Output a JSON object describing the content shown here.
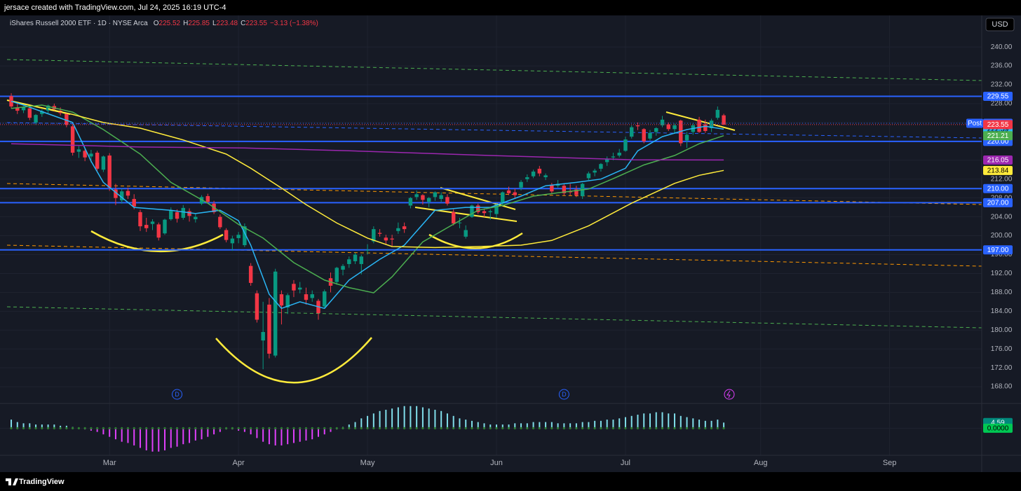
{
  "attribution": "jersace created with TradingView.com, Jul 24, 2025 16:19 UTC-4",
  "footer_logo": "TradingView",
  "chart_data": {
    "type": "candlestick",
    "title": "iShares Russell 2000 ETF · 1D · NYSE Arca",
    "ohlc_keys": [
      "O",
      "H",
      "L",
      "C"
    ],
    "change_label": "−3.13 (−1.38%)",
    "currency": "USD",
    "up_color": "#089981",
    "down_color": "#f23645",
    "candles": [
      [
        229.6,
        230.2,
        227.0,
        227.4
      ],
      [
        227.2,
        228.0,
        225.8,
        226.5
      ],
      [
        226.6,
        227.5,
        226.0,
        227.2
      ],
      [
        227.0,
        227.4,
        224.5,
        225.0
      ],
      [
        224.0,
        225.8,
        223.5,
        225.6
      ],
      [
        225.8,
        226.8,
        225.2,
        226.4
      ],
      [
        226.5,
        227.8,
        226.0,
        227.6
      ],
      [
        227.5,
        228.0,
        226.3,
        226.8
      ],
      [
        226.5,
        227.2,
        225.5,
        226.0
      ],
      [
        225.8,
        226.0,
        223.0,
        223.5
      ],
      [
        223.2,
        223.6,
        217.0,
        217.6
      ],
      [
        217.8,
        219.0,
        216.5,
        218.3
      ],
      [
        218.0,
        218.5,
        215.8,
        216.6
      ],
      [
        216.8,
        218.2,
        215.5,
        217.4
      ],
      [
        217.6,
        218.0,
        213.8,
        214.2
      ],
      [
        214.0,
        217.0,
        213.5,
        216.8
      ],
      [
        217.0,
        217.5,
        209.5,
        210.2
      ],
      [
        209.8,
        211.0,
        206.5,
        208.0
      ],
      [
        207.5,
        210.0,
        206.8,
        209.4
      ],
      [
        209.5,
        210.2,
        207.8,
        208.5
      ],
      [
        207.8,
        208.8,
        205.6,
        206.2
      ],
      [
        205.0,
        205.5,
        201.0,
        202.0
      ],
      [
        202.3,
        203.8,
        200.8,
        201.6
      ],
      [
        202.5,
        203.5,
        201.2,
        203.0
      ],
      [
        202.4,
        202.8,
        199.0,
        199.6
      ],
      [
        200.5,
        203.6,
        200.2,
        203.4
      ],
      [
        203.5,
        206.0,
        203.2,
        205.4
      ],
      [
        205.0,
        205.6,
        202.8,
        203.6
      ],
      [
        203.8,
        206.5,
        203.4,
        205.9
      ],
      [
        205.2,
        205.8,
        203.0,
        204.2
      ],
      [
        203.5,
        204.6,
        202.8,
        204.0
      ],
      [
        206.8,
        208.6,
        206.5,
        208.2
      ],
      [
        208.4,
        208.9,
        206.8,
        207.2
      ],
      [
        206.8,
        207.4,
        204.6,
        205.0
      ],
      [
        204.0,
        204.5,
        201.4,
        201.8
      ],
      [
        201.2,
        201.6,
        198.6,
        199.1
      ],
      [
        198.4,
        200.0,
        196.8,
        199.4
      ],
      [
        199.5,
        200.8,
        198.4,
        200.2
      ],
      [
        198.0,
        202.6,
        197.6,
        202.0
      ],
      [
        193.6,
        194.2,
        189.4,
        190.0
      ],
      [
        187.8,
        188.4,
        181.6,
        182.2
      ],
      [
        177.8,
        186.0,
        171.7,
        179.6
      ],
      [
        185.4,
        186.8,
        174.0,
        175.0
      ],
      [
        174.6,
        193.0,
        174.2,
        192.4
      ],
      [
        187.6,
        188.4,
        181.2,
        185.2
      ],
      [
        184.8,
        187.8,
        183.4,
        187.4
      ],
      [
        189.8,
        190.6,
        187.0,
        188.4
      ],
      [
        188.6,
        190.2,
        187.8,
        189.0
      ],
      [
        187.6,
        189.0,
        185.4,
        186.4
      ],
      [
        186.8,
        188.4,
        186.0,
        187.6
      ],
      [
        186.2,
        186.6,
        182.2,
        183.6
      ],
      [
        185.0,
        188.6,
        184.8,
        188.2
      ],
      [
        191.0,
        192.2,
        188.0,
        189.4
      ],
      [
        190.2,
        193.4,
        189.6,
        193.2
      ],
      [
        192.8,
        194.0,
        191.6,
        193.6
      ],
      [
        194.0,
        195.6,
        193.2,
        195.0
      ],
      [
        194.6,
        196.4,
        194.0,
        196.0
      ],
      [
        194.0,
        196.0,
        191.8,
        195.6
      ],
      [
        197.0,
        198.2,
        196.0,
        197.0
      ],
      [
        198.8,
        202.0,
        198.4,
        201.4
      ],
      [
        200.6,
        201.4,
        199.8,
        200.4
      ],
      [
        199.6,
        200.2,
        198.2,
        199.0
      ],
      [
        199.4,
        200.2,
        197.8,
        199.2
      ],
      [
        201.0,
        202.8,
        200.4,
        201.6
      ],
      [
        202.0,
        202.8,
        200.6,
        201.4
      ],
      [
        206.4,
        208.2,
        205.8,
        208.0
      ],
      [
        208.2,
        209.6,
        207.6,
        208.8
      ],
      [
        208.6,
        208.8,
        206.6,
        207.6
      ],
      [
        207.2,
        208.2,
        206.0,
        208.0
      ],
      [
        208.2,
        209.4,
        207.4,
        209.2
      ],
      [
        207.8,
        209.2,
        207.2,
        208.6
      ],
      [
        208.2,
        208.8,
        206.4,
        206.8
      ],
      [
        205.0,
        205.6,
        202.2,
        202.6
      ],
      [
        202.8,
        203.8,
        201.6,
        202.8
      ],
      [
        199.8,
        202.2,
        199.4,
        201.2
      ],
      [
        204.0,
        206.6,
        203.8,
        206.4
      ],
      [
        206.4,
        206.8,
        204.6,
        205.0
      ],
      [
        205.2,
        205.8,
        204.0,
        204.8
      ],
      [
        205.0,
        205.6,
        203.4,
        205.2
      ],
      [
        204.6,
        206.8,
        203.8,
        206.6
      ],
      [
        206.8,
        209.4,
        206.4,
        209.2
      ],
      [
        209.6,
        210.4,
        208.6,
        209.0
      ],
      [
        209.2,
        210.0,
        208.0,
        208.6
      ],
      [
        210.2,
        211.8,
        209.6,
        211.4
      ],
      [
        212.0,
        213.0,
        211.4,
        212.4
      ],
      [
        212.6,
        214.0,
        212.2,
        213.6
      ],
      [
        214.2,
        214.8,
        212.6,
        213.2
      ],
      [
        212.4,
        213.2,
        211.8,
        212.8
      ],
      [
        210.8,
        211.2,
        208.8,
        209.4
      ],
      [
        210.6,
        211.8,
        210.2,
        211.0
      ],
      [
        210.6,
        211.0,
        208.6,
        209.0
      ],
      [
        209.4,
        211.0,
        208.6,
        209.2
      ],
      [
        209.8,
        210.6,
        208.2,
        208.6
      ],
      [
        208.4,
        211.2,
        207.8,
        211.0
      ],
      [
        212.2,
        213.6,
        211.8,
        213.2
      ],
      [
        213.4,
        214.2,
        212.6,
        213.8
      ],
      [
        214.2,
        215.4,
        213.6,
        215.2
      ],
      [
        215.6,
        216.8,
        214.8,
        216.2
      ],
      [
        216.6,
        217.6,
        216.0,
        216.8
      ],
      [
        217.0,
        218.4,
        216.6,
        217.6
      ],
      [
        218.0,
        221.0,
        217.8,
        220.4
      ],
      [
        221.0,
        223.4,
        220.6,
        223.0
      ],
      [
        223.4,
        224.0,
        222.4,
        223.2
      ],
      [
        222.6,
        222.8,
        219.6,
        220.0
      ],
      [
        220.6,
        222.4,
        220.2,
        221.8
      ],
      [
        222.0,
        223.0,
        221.2,
        222.8
      ],
      [
        223.4,
        225.4,
        223.0,
        224.6
      ],
      [
        223.6,
        224.0,
        222.2,
        222.6
      ],
      [
        222.6,
        223.8,
        221.6,
        223.4
      ],
      [
        224.4,
        224.6,
        219.0,
        219.6
      ],
      [
        220.2,
        222.0,
        218.6,
        221.4
      ],
      [
        222.0,
        223.8,
        221.4,
        223.4
      ],
      [
        224.6,
        225.2,
        221.8,
        222.0
      ],
      [
        223.6,
        224.6,
        221.8,
        222.2
      ],
      [
        222.8,
        224.8,
        222.0,
        224.4
      ],
      [
        225.0,
        227.4,
        224.6,
        226.68
      ],
      [
        225.52,
        225.85,
        223.48,
        223.55
      ]
    ],
    "xlim": [
      -1.83,
      158
    ],
    "xticks": [
      {
        "value": 16,
        "label": "Mar"
      },
      {
        "value": 37,
        "label": "Apr"
      },
      {
        "value": 58,
        "label": "May"
      },
      {
        "value": 79,
        "label": "Jun"
      },
      {
        "value": 100,
        "label": "Jul"
      },
      {
        "value": 122,
        "label": "Aug"
      },
      {
        "value": 143,
        "label": "Sep"
      }
    ],
    "ylim": [
      164.6,
      246.7
    ],
    "yticks": [
      {
        "value": 168,
        "label": "168.00"
      },
      {
        "value": 172,
        "label": "172.00"
      },
      {
        "value": 176,
        "label": "176.00"
      },
      {
        "value": 180,
        "label": "180.00"
      },
      {
        "value": 184,
        "label": "184.00"
      },
      {
        "value": 188,
        "label": "188.00"
      },
      {
        "value": 192,
        "label": "192.00"
      },
      {
        "value": 196,
        "label": "196.00"
      },
      {
        "value": 200,
        "label": "200.00"
      },
      {
        "value": 204,
        "label": "204.00"
      },
      {
        "value": 208,
        "label": "208.00"
      },
      {
        "value": 212,
        "label": "212.00"
      },
      {
        "value": 216,
        "label": "216.00"
      },
      {
        "value": 220,
        "label": "220.00"
      },
      {
        "value": 224,
        "label": "224.00"
      },
      {
        "value": 228,
        "label": "228.00"
      },
      {
        "value": 232,
        "label": "232.00"
      },
      {
        "value": 236,
        "label": "236.00"
      },
      {
        "value": 240,
        "label": "240.00"
      }
    ],
    "grid": true,
    "series": [
      {
        "color": "#29b6f6",
        "x": [
          0,
          2,
          10,
          13,
          15,
          20,
          26,
          30,
          34,
          37,
          39,
          42,
          44,
          47,
          51,
          55,
          60,
          64,
          69,
          74,
          78,
          83,
          87,
          92,
          96,
          100,
          102,
          106,
          110,
          113,
          116
        ],
        "values": [
          228.5,
          227.7,
          224.0,
          215.8,
          211.3,
          206.0,
          205.4,
          204.7,
          205.4,
          203.2,
          198.0,
          187.6,
          184.6,
          186.0,
          184.6,
          190.6,
          195.0,
          198.0,
          205.4,
          206.0,
          206.0,
          208.4,
          210.6,
          211.3,
          212.0,
          214.3,
          218.0,
          221.0,
          222.5,
          223.2,
          222.59
        ]
      },
      {
        "color": "#4caf50",
        "x": [
          0,
          5,
          10,
          15,
          21,
          26,
          32,
          37,
          41,
          46,
          51,
          55,
          59,
          62,
          67,
          71,
          76,
          80,
          85,
          89,
          94,
          98,
          103,
          108,
          112,
          116
        ],
        "values": [
          227.0,
          227.7,
          226.2,
          222.5,
          217.3,
          211.3,
          206.9,
          202.4,
          199.5,
          194.3,
          190.6,
          189.0,
          187.9,
          191.3,
          198.7,
          201.7,
          205.4,
          206.4,
          208.4,
          209.1,
          209.9,
          212.1,
          215.0,
          217.0,
          219.5,
          221.21
        ]
      },
      {
        "color": "#ffeb3b",
        "x": [
          6,
          10,
          15,
          21,
          28,
          35,
          39,
          44,
          48,
          53,
          58,
          62,
          69,
          76,
          83,
          88,
          94,
          101,
          108,
          112,
          116
        ],
        "values": [
          226.9,
          225.7,
          224.0,
          222.8,
          220.3,
          217.3,
          214.3,
          210.1,
          206.6,
          202.7,
          199.5,
          197.7,
          197.5,
          197.7,
          198.0,
          199.0,
          202.1,
          206.9,
          211.1,
          212.8,
          213.84
        ]
      },
      {
        "color": "#9c27b0",
        "x": [
          0,
          21,
          38,
          55,
          78,
          101,
          116
        ],
        "values": [
          219.5,
          218.8,
          218.6,
          218.0,
          217.0,
          216.1,
          216.05
        ]
      }
    ],
    "levels": [
      229.55,
      {
        "value": 220,
        "label": "220.00"
      },
      {
        "value": 210,
        "label": "210.00"
      },
      {
        "value": 207,
        "label": "207.00"
      },
      {
        "value": 197,
        "label": "197.00"
      }
    ],
    "level_color": "#2962ff",
    "post": {
      "label": "Post",
      "value": 223.84
    },
    "dividends": [
      {
        "x": 27,
        "label": "D"
      },
      {
        "x": 90,
        "label": "D"
      }
    ],
    "oscillator": {
      "up_color": "#80deea",
      "down_color": "#e040fb",
      "ylim": [
        -22,
        19
      ],
      "yticks": [
        {
          "value": 0,
          "label": "0.0000"
        }
      ],
      "values": [
        7,
        5,
        4,
        4,
        3,
        3,
        3,
        3,
        2,
        2,
        1,
        0.5,
        -1,
        -2,
        -3,
        -5,
        -7,
        -9,
        -11,
        -12,
        -14,
        -16,
        -18,
        -19,
        -19,
        -18,
        -16,
        -15,
        -13,
        -12,
        -10,
        -9,
        -7,
        -5,
        -3,
        -1,
        -1,
        -2,
        -3,
        -5,
        -8,
        -11,
        -13,
        -14,
        -14,
        -13,
        -12,
        -11,
        -10,
        -9,
        -7,
        -5,
        -3,
        -1,
        1,
        3,
        5,
        8,
        10,
        12,
        14,
        15,
        16,
        17,
        18,
        18,
        18,
        17,
        16,
        15,
        14,
        12,
        10,
        8,
        7,
        6,
        5,
        4,
        3,
        3,
        3,
        3,
        4,
        4,
        4,
        5,
        5,
        5,
        5,
        4,
        4,
        4,
        4,
        5,
        5,
        6,
        6,
        7,
        7,
        8,
        9,
        10,
        11,
        12,
        12,
        13,
        13,
        12,
        12,
        10,
        9,
        8,
        7,
        6,
        6,
        7,
        4.59
      ]
    }
  }
}
